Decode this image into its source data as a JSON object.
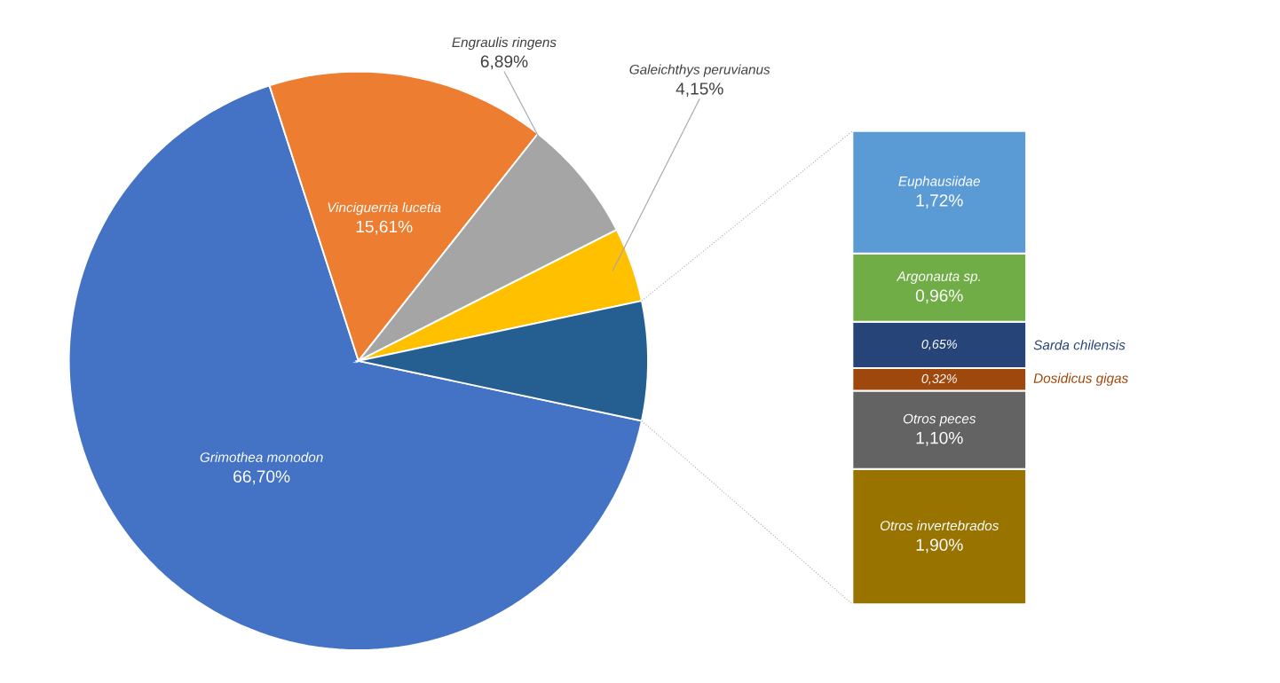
{
  "chart_data": [
    {
      "type": "pie",
      "categories": [
        "Grimothea monodon",
        "Vinciguerria lucetia",
        "Engraulis ringens",
        "Galeichthys peruvianus",
        null
      ],
      "values": [
        66.7,
        15.61,
        6.89,
        4.15,
        6.65
      ],
      "value_labels": [
        "66,70%",
        "15,61%",
        "6,89%",
        "4,15%",
        null
      ],
      "colors": [
        "#4472c4",
        "#ed7d31",
        "#a5a5a5",
        "#ffc000",
        "#255e91"
      ]
    },
    {
      "type": "bar",
      "stacked": true,
      "categories": [
        null
      ],
      "series": [
        {
          "name": "Otros invertebrados",
          "color": "#997300",
          "values": [
            1.9
          ],
          "value_labels": [
            "1,90%"
          ]
        },
        {
          "name": "Otros peces",
          "color": "#636363",
          "values": [
            1.1
          ],
          "value_labels": [
            "1,10%"
          ]
        },
        {
          "name": "Dosidicus gigas",
          "color": "#9e480e",
          "values": [
            0.32
          ],
          "value_labels": [
            "0,32%"
          ]
        },
        {
          "name": "Sarda chilensis",
          "color": "#264478",
          "values": [
            0.65
          ],
          "value_labels": [
            "0,65%"
          ]
        },
        {
          "name": "Argonauta sp.",
          "color": "#70ad47",
          "values": [
            0.96
          ],
          "value_labels": [
            "0,96%"
          ]
        },
        {
          "name": "Euphausiidae",
          "color": "#5b9bd5",
          "values": [
            1.72
          ],
          "value_labels": [
            "1,72%"
          ]
        }
      ]
    }
  ]
}
